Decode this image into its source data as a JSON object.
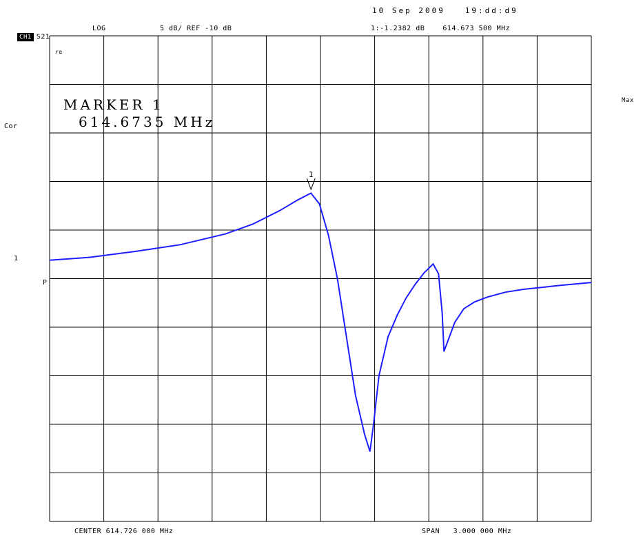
{
  "header": {
    "timestamp": "10 Sep 2009   19:dd:d9",
    "channel": "CH1",
    "param": "S21",
    "format": "LOG",
    "scale": "5 dB/ REF -10 dB",
    "marker_readout": "1:-1.2382 dB    614.673 500 MHz"
  },
  "side": {
    "cor": "Cor",
    "marker_num": "1",
    "ref_pointer": "P",
    "corner": "re",
    "max": "Max"
  },
  "marker": {
    "title": "MARKER 1",
    "freq": "614.6735 MHz",
    "symbol": "1"
  },
  "footer": {
    "center": "CENTER 614.726 000 MHz",
    "span": "SPAN   3.000 000 MHz"
  },
  "chart_data": {
    "type": "line",
    "xlabel": "",
    "ylabel": "",
    "units": {
      "x": "MHz",
      "y": "dB"
    },
    "center_mhz": 614.726,
    "span_mhz": 3.0,
    "ref_db": -10,
    "db_per_div": 5,
    "xlim": [
      613.226,
      616.226
    ],
    "ylim": [
      -35,
      15
    ],
    "divisions": {
      "x": 10,
      "y": 10
    },
    "grid": true,
    "trace_color": "#1e1eff",
    "series": [
      {
        "x": [
          613.226,
          613.45,
          613.7,
          613.95,
          614.2,
          614.35,
          614.5,
          614.6,
          614.6735,
          614.72,
          614.77,
          614.82,
          614.87,
          614.92,
          614.97,
          615.0,
          615.02,
          615.05,
          615.1,
          615.15,
          615.2,
          615.25,
          615.3,
          615.35,
          615.38,
          615.4,
          615.41,
          615.43,
          615.47,
          615.52,
          615.58,
          615.65,
          615.75,
          615.85,
          615.95,
          616.05,
          616.226
        ],
        "values": [
          -8.1,
          -7.8,
          -7.2,
          -6.5,
          -5.4,
          -4.4,
          -3.0,
          -1.9,
          -1.2,
          -2.3,
          -5.5,
          -10.0,
          -16.0,
          -22.0,
          -26.0,
          -27.8,
          -25.0,
          -20.0,
          -16.0,
          -13.8,
          -12.0,
          -10.6,
          -9.4,
          -8.5,
          -9.5,
          -13.5,
          -17.5,
          -16.5,
          -14.5,
          -13.1,
          -12.4,
          -11.9,
          -11.4,
          -11.1,
          -10.9,
          -10.7,
          -10.4
        ]
      }
    ],
    "markers": [
      {
        "label": "1",
        "x": 614.6735,
        "y": -1.2382
      }
    ]
  }
}
